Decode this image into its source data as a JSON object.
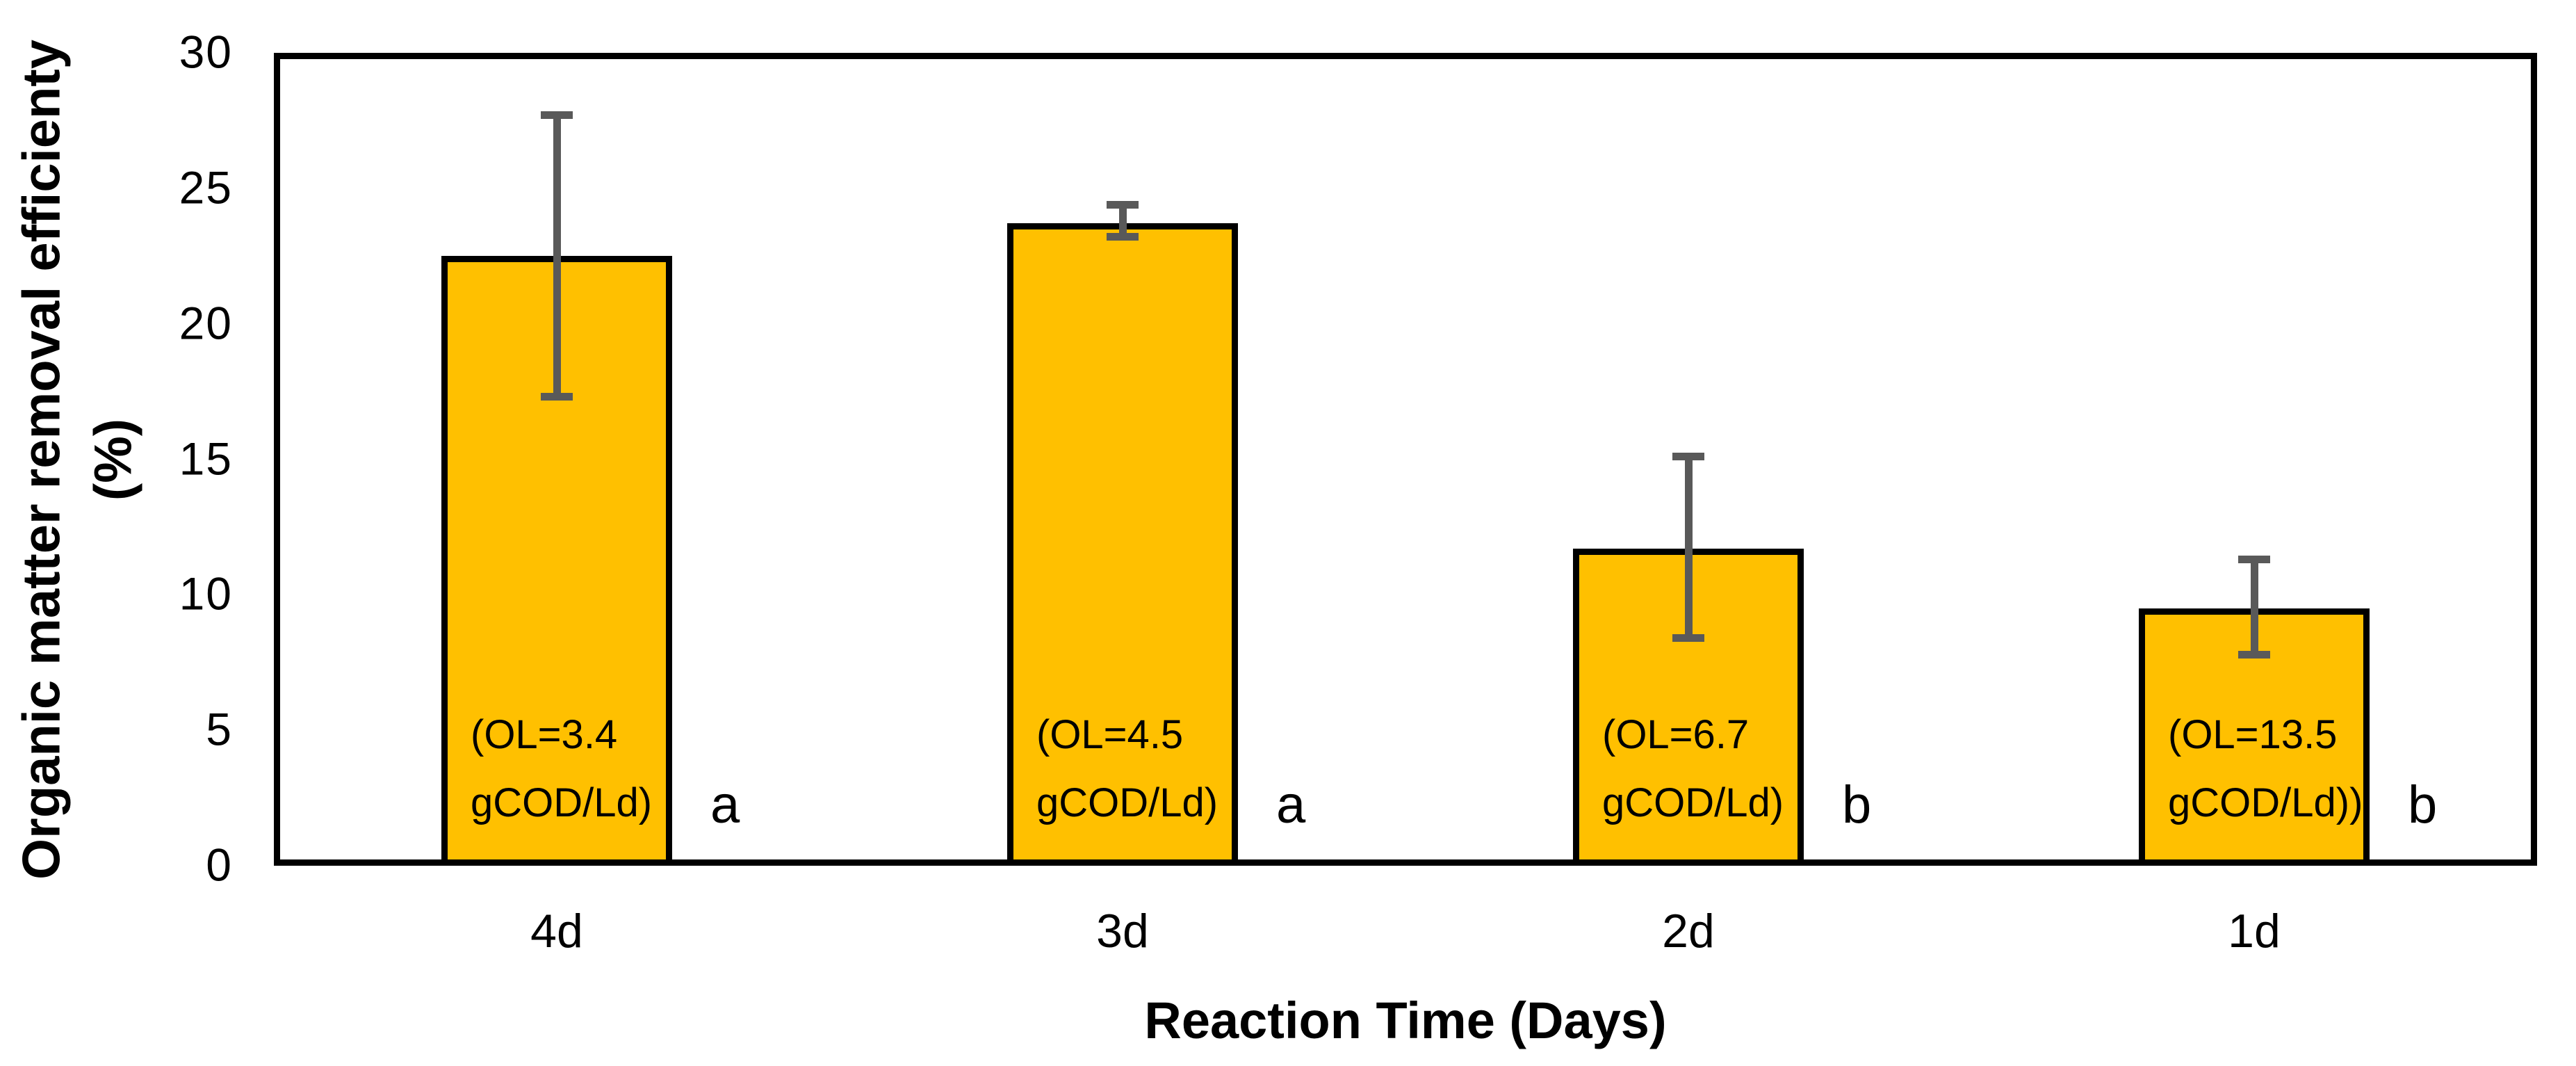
{
  "chart_data": {
    "type": "bar",
    "title": "",
    "xlabel": "Reaction Time (Days)",
    "ylabel_line1": "Organic matter removal efficienty",
    "ylabel_line2": "(%)",
    "ylim": [
      0,
      30
    ],
    "yticks": [
      "0",
      "5",
      "10",
      "15",
      "20",
      "25",
      "30"
    ],
    "grid": "off",
    "legend": "none",
    "categories": [
      "4d",
      "3d",
      "2d",
      "1d"
    ],
    "series": [
      {
        "name": "Organic matter removal efficiency",
        "values": [
          22.5,
          23.7,
          11.7,
          9.5
        ],
        "error_low": [
          17.3,
          23.2,
          8.4,
          7.8
        ],
        "error_high": [
          27.7,
          24.4,
          15.1,
          11.3
        ]
      }
    ],
    "bar_annotations": [
      [
        "(OL=3.4",
        "gCOD/Ld)"
      ],
      [
        "(OL=4.5",
        "gCOD/Ld)"
      ],
      [
        "(OL=6.7",
        "gCOD/Ld)"
      ],
      [
        "(OL=13.5",
        "gCOD/Ld))"
      ]
    ],
    "significance_letters": [
      "a",
      "a",
      "b",
      "b"
    ],
    "colors": {
      "bar_fill": "#FFC000",
      "bar_border": "#000000",
      "error_bar": "#595959",
      "frame": "#000000",
      "text": "#000000"
    }
  }
}
